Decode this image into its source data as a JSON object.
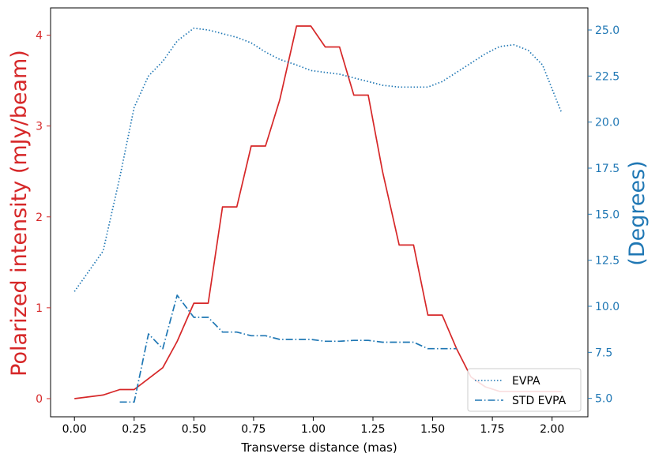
{
  "chart_data": {
    "type": "line",
    "xlabel": "Transverse distance (mas)",
    "y_left_label": "Polarized intensity (mJy/beam)",
    "y_right_label": "(Degrees)",
    "xlim": [
      -0.1,
      2.15
    ],
    "ylim_left": [
      -0.2,
      4.3
    ],
    "ylim_right": [
      4.0,
      26.2
    ],
    "x_ticks": [
      0.0,
      0.25,
      0.5,
      0.75,
      1.0,
      1.25,
      1.5,
      1.75,
      2.0
    ],
    "x_tick_labels": [
      "0.00",
      "0.25",
      "0.50",
      "0.75",
      "1.00",
      "1.25",
      "1.50",
      "1.75",
      "2.00"
    ],
    "y_left_ticks": [
      0,
      1,
      2,
      3,
      4
    ],
    "y_left_tick_labels": [
      "0",
      "1",
      "2",
      "3",
      "4"
    ],
    "y_right_ticks": [
      5.0,
      7.5,
      10.0,
      12.5,
      15.0,
      17.5,
      20.0,
      22.5,
      25.0
    ],
    "y_right_tick_labels": [
      "5.0",
      "7.5",
      "10.0",
      "12.5",
      "15.0",
      "17.5",
      "20.0",
      "22.5",
      "25.0"
    ],
    "left_axis_color": "#d62728",
    "right_axis_color": "#1f77b4",
    "legend_location": "bottom-right",
    "series": [
      {
        "axis": "left",
        "color": "#d62728",
        "style": "solid",
        "x": [
          0.0,
          0.12,
          0.19,
          0.25,
          0.31,
          0.37,
          0.43,
          0.5,
          0.56,
          0.62,
          0.68,
          0.74,
          0.8,
          0.86,
          0.93,
          0.99,
          1.05,
          1.11,
          1.17,
          1.23,
          1.29,
          1.36,
          1.42,
          1.48,
          1.54,
          1.6,
          1.66,
          1.72,
          1.78,
          1.84,
          1.9,
          2.04
        ],
        "values": [
          0.0,
          0.04,
          0.1,
          0.1,
          0.22,
          0.34,
          0.63,
          1.05,
          1.05,
          2.11,
          2.11,
          2.78,
          2.78,
          3.29,
          4.1,
          4.1,
          3.87,
          3.87,
          3.34,
          3.34,
          2.5,
          1.69,
          1.69,
          0.92,
          0.92,
          0.55,
          0.24,
          0.13,
          0.08,
          0.08,
          0.08,
          0.08
        ]
      },
      {
        "name": "EVPA",
        "axis": "right",
        "color": "#1f77b4",
        "style": "dotted",
        "x": [
          0.0,
          0.12,
          0.19,
          0.25,
          0.31,
          0.37,
          0.43,
          0.5,
          0.56,
          0.62,
          0.68,
          0.74,
          0.8,
          0.86,
          0.93,
          0.99,
          1.05,
          1.11,
          1.17,
          1.23,
          1.29,
          1.36,
          1.42,
          1.48,
          1.54,
          1.6,
          1.66,
          1.72,
          1.78,
          1.84,
          1.9,
          1.96,
          2.04
        ],
        "values": [
          10.8,
          13.0,
          17.0,
          20.8,
          22.5,
          23.3,
          24.4,
          25.1,
          25.0,
          24.8,
          24.6,
          24.3,
          23.8,
          23.4,
          23.1,
          22.8,
          22.7,
          22.6,
          22.4,
          22.2,
          22.0,
          21.9,
          21.9,
          21.9,
          22.2,
          22.7,
          23.2,
          23.7,
          24.1,
          24.2,
          23.9,
          23.1,
          20.5
        ]
      },
      {
        "name": "STD EVPA",
        "axis": "right",
        "color": "#1f77b4",
        "style": "dashdot",
        "x": [
          0.19,
          0.25,
          0.31,
          0.37,
          0.43,
          0.5,
          0.56,
          0.62,
          0.68,
          0.74,
          0.8,
          0.86,
          0.93,
          0.99,
          1.05,
          1.11,
          1.17,
          1.23,
          1.29,
          1.36,
          1.42,
          1.48,
          1.54,
          1.6
        ],
        "values": [
          4.8,
          4.8,
          8.5,
          7.7,
          10.6,
          9.4,
          9.4,
          8.6,
          8.6,
          8.4,
          8.4,
          8.2,
          8.2,
          8.2,
          8.1,
          8.1,
          8.15,
          8.15,
          8.05,
          8.05,
          8.05,
          7.7,
          7.7,
          7.7
        ]
      }
    ]
  }
}
